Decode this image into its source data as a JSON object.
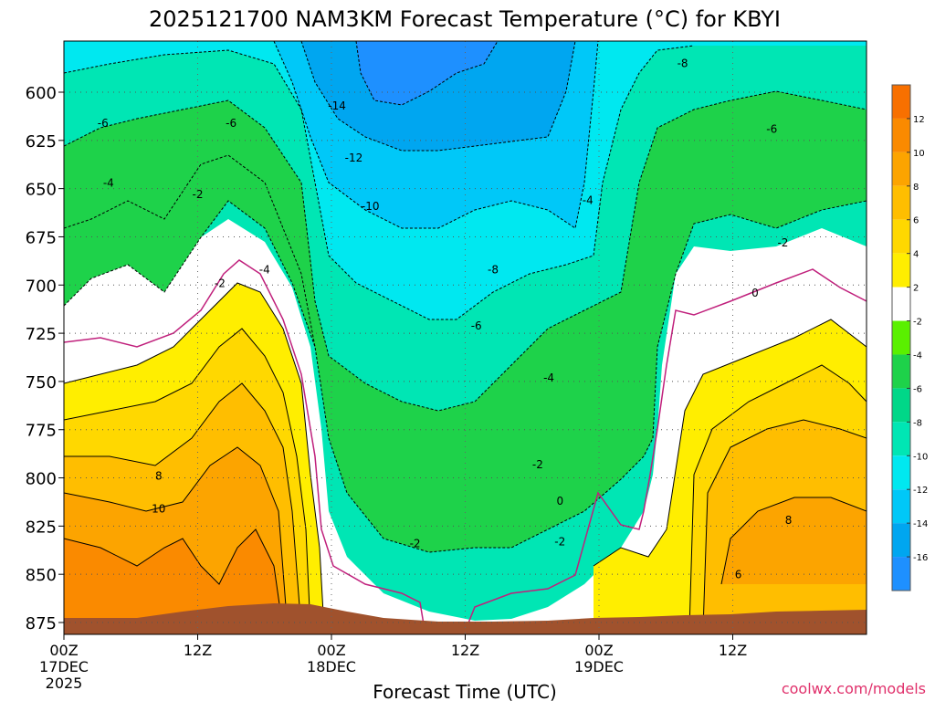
{
  "chart_data": {
    "type": "contour",
    "title": "2025121700 NAM3KM Forecast Temperature (°C) for KBYI",
    "xlabel": "Forecast Time (UTC)",
    "ylabel": "Pressure (hPa)",
    "x_range_hours": [
      0,
      72
    ],
    "ylim": [
      875,
      580
    ],
    "y_ticks": [
      {
        "value": 600,
        "label": "600"
      },
      {
        "value": 625,
        "label": "625"
      },
      {
        "value": 650,
        "label": "650"
      },
      {
        "value": 675,
        "label": "675"
      },
      {
        "value": 700,
        "label": "700"
      },
      {
        "value": 725,
        "label": "725"
      },
      {
        "value": 750,
        "label": "750"
      },
      {
        "value": 775,
        "label": "775"
      },
      {
        "value": 800,
        "label": "800"
      },
      {
        "value": 825,
        "label": "825"
      },
      {
        "value": 850,
        "label": "850"
      },
      {
        "value": 875,
        "label": "875"
      }
    ],
    "x_ticks": [
      {
        "hour": 0,
        "label": "00Z",
        "date": "17DEC",
        "year": "2025"
      },
      {
        "hour": 12,
        "label": "12Z",
        "date": "",
        "year": ""
      },
      {
        "hour": 24,
        "label": "00Z",
        "date": "18DEC",
        "year": ""
      },
      {
        "hour": 36,
        "label": "12Z",
        "date": "",
        "year": ""
      },
      {
        "hour": 48,
        "label": "00Z",
        "date": "19DEC",
        "year": ""
      },
      {
        "hour": 60,
        "label": "12Z",
        "date": "",
        "year": ""
      }
    ],
    "colorbar": {
      "levels": [
        -18,
        -16,
        -14,
        -12,
        -10,
        -8,
        -6,
        -4,
        -2,
        2,
        4,
        6,
        8,
        10,
        12,
        14
      ],
      "tick_labels": [
        "-16",
        "-14",
        "-12",
        "-10",
        "-8",
        "-6",
        "-4",
        "-2",
        "2",
        "4",
        "6",
        "8",
        "10",
        "12"
      ],
      "colors": [
        "#1e90ff",
        "#00a6f0",
        "#00c8f8",
        "#00e8f0",
        "#00e6b4",
        "#00d788",
        "#1ed24a",
        "#5af000",
        "#ffffff",
        "#ffee00",
        "#ffd800",
        "#ffbe00",
        "#fca400",
        "#fa8a00",
        "#f87000"
      ]
    },
    "series": [
      {
        "name": "temperature_profile_by_hour",
        "pressure_levels": [
          875,
          850,
          825,
          800,
          775,
          750,
          725,
          700,
          675,
          650,
          625,
          600,
          580
        ],
        "profiles": [
          {
            "hour": 0,
            "values": [
              11,
              10,
              10,
              8,
              5,
              3,
              2,
              -1,
              -3,
              -5,
              -6,
              -7,
              -8
            ]
          },
          {
            "hour": 6,
            "values": [
              11,
              11,
              10,
              8,
              5,
              3,
              2,
              -1,
              -3,
              -5,
              -6,
              -7,
              -8
            ]
          },
          {
            "hour": 12,
            "values": [
              12,
              11,
              10,
              8,
              6,
              5,
              3,
              0,
              -2,
              -4,
              -6,
              -7,
              -8
            ]
          },
          {
            "hour": 16,
            "values": [
              12,
              11,
              9,
              7,
              5,
              2,
              0,
              -2,
              -4,
              -5,
              -6,
              -8,
              -9
            ]
          },
          {
            "hour": 18,
            "values": [
              6,
              4,
              2,
              -2,
              -4,
              -5,
              -6,
              -7,
              -8,
              -9,
              -10,
              -11,
              -12
            ]
          },
          {
            "hour": 24,
            "values": [
              0,
              0,
              -1,
              -3,
              -5,
              -7,
              -8,
              -9,
              -10,
              -11,
              -13,
              -14,
              -15
            ]
          },
          {
            "hour": 30,
            "values": [
              0,
              -1,
              -2,
              -4,
              -6,
              -7,
              -8,
              -9,
              -10,
              -11,
              -12,
              -13,
              -14
            ]
          },
          {
            "hour": 36,
            "values": [
              1,
              0,
              -1,
              -3,
              -5,
              -6,
              -7,
              -8,
              -9,
              -10,
              -11,
              -12,
              -13
            ]
          },
          {
            "hour": 42,
            "values": [
              1,
              0,
              -1,
              -2,
              -3,
              -4,
              -6,
              -7,
              -8,
              -9,
              -10,
              -11,
              -12
            ]
          },
          {
            "hour": 48,
            "values": [
              4,
              3,
              3,
              3,
              3,
              2,
              2,
              1,
              -2,
              -4,
              -6,
              -7,
              -8
            ]
          },
          {
            "hour": 54,
            "values": [
              7,
              7,
              8,
              7,
              6,
              5,
              4,
              2,
              0,
              -3,
              -5,
              -6,
              -7
            ]
          },
          {
            "hour": 60,
            "values": [
              8,
              8,
              9,
              8,
              6,
              5,
              4,
              2,
              0,
              -2,
              -5,
              -6,
              -7
            ]
          },
          {
            "hour": 72,
            "values": [
              7,
              8,
              8,
              6,
              5,
              4,
              2,
              0,
              -2,
              -3,
              -5,
              -6,
              -7
            ]
          }
        ]
      }
    ],
    "contour_labels": [
      {
        "text": "-14",
        "hour": 24.5,
        "p": 608
      },
      {
        "text": "-12",
        "hour": 26,
        "p": 635
      },
      {
        "text": "-10",
        "hour": 27.5,
        "p": 660
      },
      {
        "text": "-8",
        "hour": 55.5,
        "p": 586
      },
      {
        "text": "-8",
        "hour": 38.5,
        "p": 693
      },
      {
        "text": "-6",
        "hour": 3.5,
        "p": 617
      },
      {
        "text": "-6",
        "hour": 15,
        "p": 617
      },
      {
        "text": "-6",
        "hour": 63.5,
        "p": 620
      },
      {
        "text": "-6",
        "hour": 37,
        "p": 722
      },
      {
        "text": "-4",
        "hour": 4,
        "p": 648
      },
      {
        "text": "-4",
        "hour": 18,
        "p": 693
      },
      {
        "text": "-4",
        "hour": 43.5,
        "p": 749
      },
      {
        "text": "-4",
        "hour": 47,
        "p": 657
      },
      {
        "text": "-2",
        "hour": 12,
        "p": 654
      },
      {
        "text": "-2",
        "hour": 14,
        "p": 700
      },
      {
        "text": "-2",
        "hour": 42.5,
        "p": 794
      },
      {
        "text": "-2",
        "hour": 31.5,
        "p": 835
      },
      {
        "text": "-2",
        "hour": 44.5,
        "p": 834
      },
      {
        "text": "-2",
        "hour": 64.5,
        "p": 679
      },
      {
        "text": "0",
        "hour": 62,
        "p": 705
      },
      {
        "text": "0",
        "hour": 44.5,
        "p": 813
      },
      {
        "text": "8",
        "hour": 8.5,
        "p": 800
      },
      {
        "text": "8",
        "hour": 65,
        "p": 823
      },
      {
        "text": "10",
        "hour": 8.5,
        "p": 817
      },
      {
        "text": "6",
        "hour": 60.5,
        "p": 851
      }
    ]
  },
  "footer": {
    "credit": "coolwx.com/models"
  }
}
